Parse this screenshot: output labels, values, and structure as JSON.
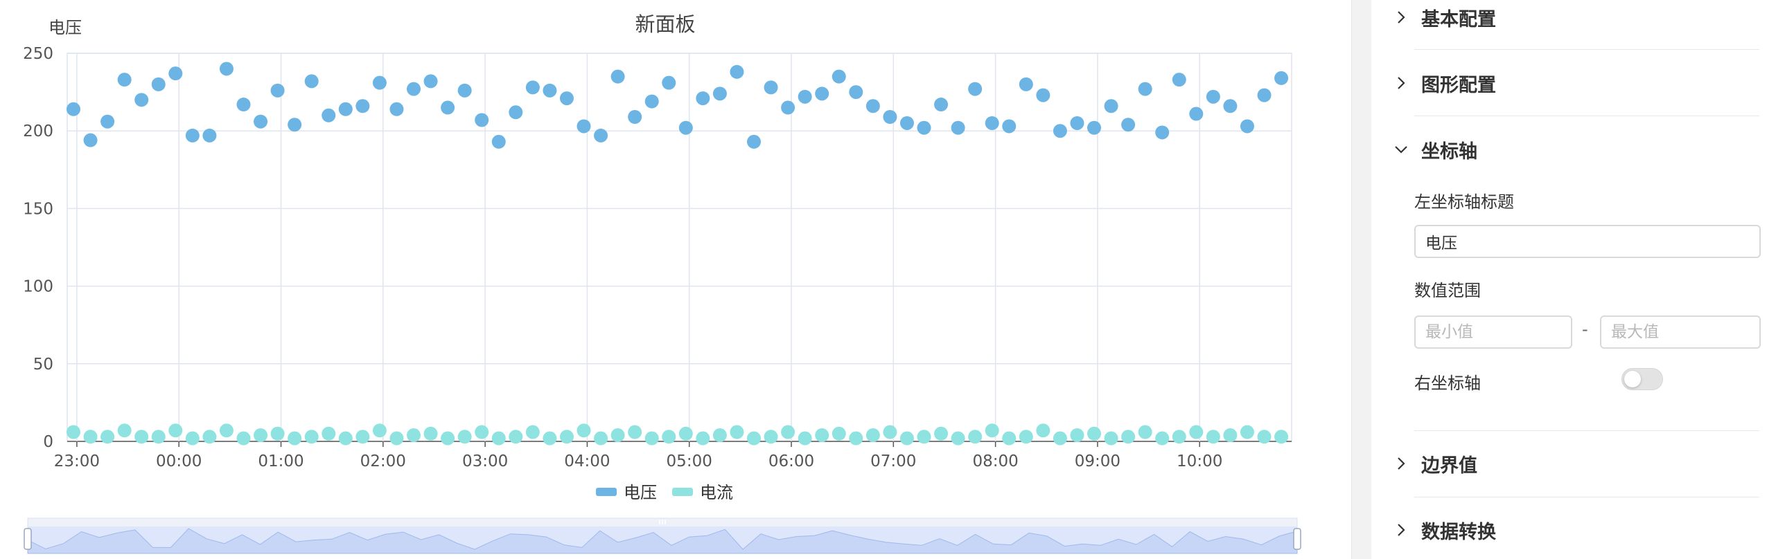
{
  "chart": {
    "title": "新面板",
    "y_axis_title": "电压"
  },
  "chart_data": {
    "type": "scatter",
    "title": "新面板",
    "ylabel": "电压",
    "xlabel": "",
    "ylim": [
      0,
      250
    ],
    "y_ticks": [
      "0",
      "50",
      "100",
      "150",
      "200",
      "250"
    ],
    "x_ticks": [
      "23:00",
      "00:00",
      "01:00",
      "02:00",
      "03:00",
      "04:00",
      "05:00",
      "06:00",
      "07:00",
      "08:00",
      "09:00",
      "10:00"
    ],
    "x_start": "22:58",
    "x_step_minutes": 10,
    "grid": true,
    "legend_position": "bottom",
    "series": [
      {
        "name": "电压",
        "color": "#6cb4e4",
        "values": [
          214,
          194,
          206,
          233,
          220,
          230,
          237,
          197,
          197,
          240,
          217,
          206,
          226,
          204,
          232,
          210,
          214,
          216,
          231,
          214,
          227,
          232,
          215,
          226,
          207,
          193,
          212,
          228,
          226,
          221,
          203,
          197,
          235,
          209,
          219,
          231,
          202,
          221,
          224,
          238,
          193,
          228,
          215,
          222,
          224,
          235,
          225,
          216,
          209,
          205,
          202,
          217,
          202,
          227,
          205,
          203,
          230,
          223,
          200,
          205,
          202,
          216,
          204,
          227,
          199,
          233,
          211,
          222,
          216,
          203,
          223,
          234
        ]
      },
      {
        "name": "电流",
        "color": "#8ee3e0",
        "values": [
          6,
          3,
          3,
          7,
          3,
          3,
          7,
          2,
          3,
          7,
          2,
          4,
          5,
          2,
          3,
          5,
          2,
          3,
          7,
          2,
          4,
          5,
          2,
          3,
          6,
          2,
          3,
          6,
          2,
          3,
          7,
          2,
          4,
          6,
          2,
          3,
          5,
          2,
          4,
          6,
          2,
          3,
          6,
          2,
          4,
          5,
          2,
          4,
          6,
          2,
          3,
          5,
          2,
          3,
          7,
          2,
          3,
          7,
          2,
          4,
          5,
          2,
          3,
          6,
          2,
          3,
          6,
          3,
          4,
          6,
          3,
          3
        ]
      }
    ]
  },
  "panel": {
    "sections": [
      {
        "label": "基本配置",
        "expanded": false
      },
      {
        "label": "图形配置",
        "expanded": false
      },
      {
        "label": "坐标轴",
        "expanded": true
      },
      {
        "label": "边界值",
        "expanded": false
      },
      {
        "label": "数据转换",
        "expanded": false
      }
    ],
    "axis": {
      "left_title_label": "左坐标轴标题",
      "left_title_value": "电压",
      "range_label": "数值范围",
      "min_placeholder": "最小值",
      "max_placeholder": "最大值",
      "range_dash": "-",
      "right_axis_label": "右坐标轴",
      "right_axis_enabled": false
    }
  },
  "colors": {
    "accent": "#6cb4e4",
    "secondary": "#8ee3e0",
    "grid": "#dfe4ee"
  }
}
